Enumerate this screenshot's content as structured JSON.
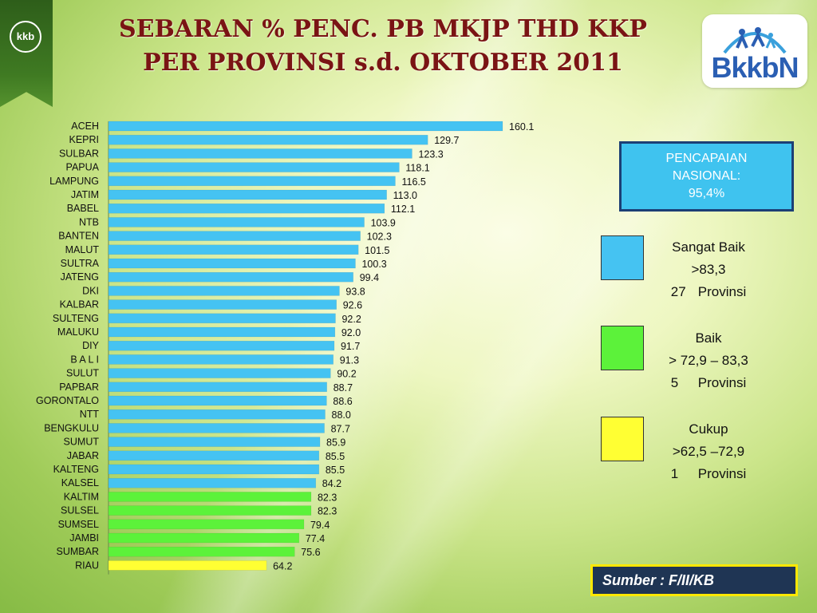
{
  "header": {
    "title_line1": "SEBARAN % PENC. PB MKJP THD KKP",
    "title_line2": "PER PROVINSI s.d. OKTOBER 2011",
    "corner_logo_text": "kkb",
    "brand_text": "BkkbN"
  },
  "chart_data": {
    "type": "bar",
    "orientation": "horizontal",
    "categories": [
      "ACEH",
      "KEPRI",
      "SULBAR",
      "PAPUA",
      "LAMPUNG",
      "JATIM",
      "BABEL",
      "NTB",
      "BANTEN",
      "MALUT",
      "SULTRA",
      "JATENG",
      "DKI",
      "KALBAR",
      "SULTENG",
      "MALUKU",
      "DIY",
      "B A L I",
      "SULUT",
      "PAPBAR",
      "GORONTALO",
      "NTT",
      "BENGKULU",
      "SUMUT",
      "JABAR",
      "KALTENG",
      "KALSEL",
      "KALTIM",
      "SULSEL",
      "SUMSEL",
      "JAMBI",
      "SUMBAR",
      "RIAU"
    ],
    "values": [
      160.1,
      129.7,
      123.3,
      118.1,
      116.5,
      113.0,
      112.1,
      103.9,
      102.3,
      101.5,
      100.3,
      99.4,
      93.8,
      92.6,
      92.2,
      92.0,
      91.7,
      91.3,
      90.2,
      88.7,
      88.6,
      88.0,
      87.7,
      85.9,
      85.5,
      85.5,
      84.2,
      82.3,
      82.3,
      79.4,
      77.4,
      75.6,
      64.2
    ],
    "value_labels": [
      "160.1",
      "129.7",
      "123.3",
      "118.1",
      "116.5",
      "113.0",
      "112.1",
      "103.9",
      "102.3",
      "101.5",
      "100.3",
      "99.4",
      "93.8",
      "92.6",
      "92.2",
      "92.0",
      "91.7",
      "91.3",
      "90.2",
      "88.7",
      "88.6",
      "88.0",
      "87.7",
      "85.9",
      "85.5",
      "85.5",
      "84.2",
      "82.3",
      "82.3",
      "79.4",
      "77.4",
      "75.6",
      "64.2"
    ],
    "xlim": [
      0,
      160.1
    ],
    "grid": false,
    "legend_position": "right",
    "color_thresholds": [
      {
        "min_exclusive": 83.3,
        "color": "#45c3f2"
      },
      {
        "min_exclusive": 72.9,
        "color": "#5cf23a"
      },
      {
        "min_exclusive": 62.5,
        "color": "#ffff33"
      }
    ]
  },
  "summary_box": {
    "line1": "PENCAPAIAN",
    "line2": "NASIONAL:",
    "line3": "95,4%"
  },
  "legend": [
    {
      "label": "Sangat Baik",
      "range": ">83,3",
      "count": "27",
      "unit": "Provinsi",
      "color": "#45c3f2"
    },
    {
      "label": "Baik",
      "range": "> 72,9 – 83,3",
      "count": "5",
      "unit": "Provinsi",
      "color": "#5cf23a"
    },
    {
      "label": "Cukup",
      "range": ">62,5 –72,9",
      "count": "1",
      "unit": "Provinsi",
      "color": "#ffff33"
    }
  ],
  "source": "Sumber : F/II/KB"
}
